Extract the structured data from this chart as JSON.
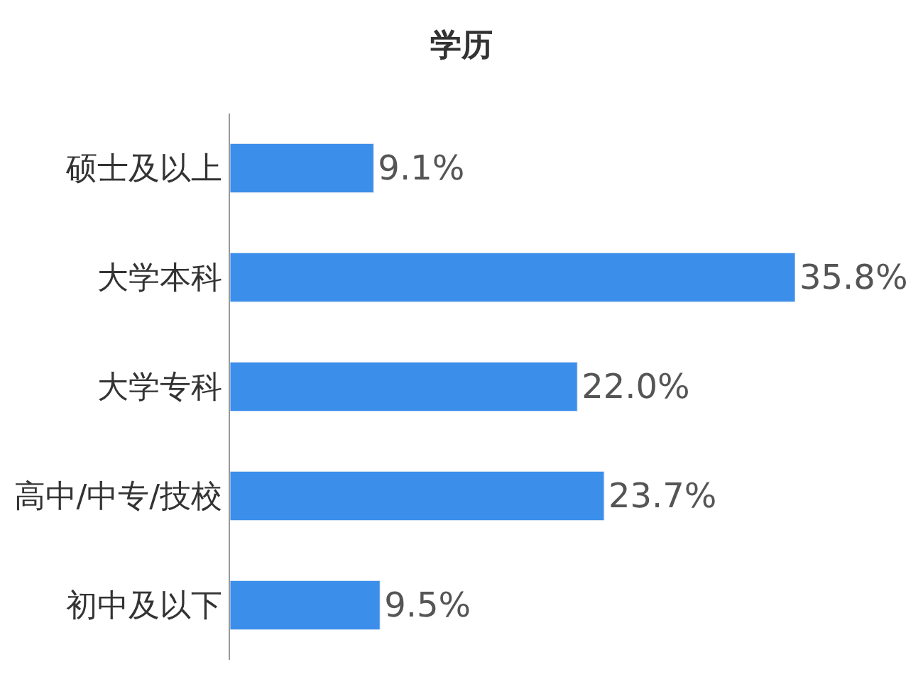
{
  "chart_data": {
    "type": "bar",
    "orientation": "horizontal",
    "title": "学历",
    "categories": [
      "硕士及以上",
      "大学本科",
      "大学专科",
      "高中/中专/技校",
      "初中及以下"
    ],
    "values": [
      9.1,
      35.8,
      22.0,
      23.7,
      9.5
    ],
    "value_labels": [
      "9.1%",
      "35.8%",
      "22.0%",
      "23.7%",
      "9.5%"
    ],
    "color": "#3b8eea"
  }
}
